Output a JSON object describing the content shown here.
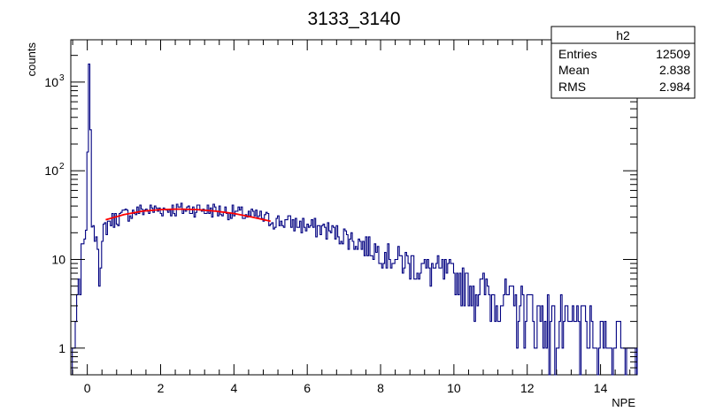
{
  "chart_data": {
    "type": "histogram",
    "title": "3133_3140",
    "xlabel": "NPE",
    "ylabel": "counts",
    "xlim": [
      -0.45,
      15
    ],
    "ylim": [
      0.5,
      3000
    ],
    "yscale": "log",
    "grid": false,
    "x_ticks": [
      0,
      2,
      4,
      6,
      8,
      10,
      12,
      14
    ],
    "y_ticks": [
      {
        "value": 1,
        "label": "1"
      },
      {
        "value": 10,
        "label": "10"
      },
      {
        "value": 100,
        "label": "10",
        "exp": "2"
      },
      {
        "value": 1000,
        "label": "10",
        "exp": "3"
      }
    ],
    "hist_color": "#000080",
    "fit_color": "#ff0000",
    "histogram_shape": [
      [
        -0.45,
        0.0
      ],
      [
        -0.1,
        20
      ],
      [
        0.0,
        22
      ],
      [
        0.02,
        1200
      ],
      [
        0.05,
        1600
      ],
      [
        0.08,
        900
      ],
      [
        0.11,
        30
      ],
      [
        0.15,
        18
      ],
      [
        0.2,
        21
      ],
      [
        0.3,
        17
      ],
      [
        0.35,
        5
      ],
      [
        0.45,
        22
      ],
      [
        0.6,
        27
      ],
      [
        1.0,
        32
      ],
      [
        1.5,
        36
      ],
      [
        2.0,
        37
      ],
      [
        2.5,
        37
      ],
      [
        3.0,
        37
      ],
      [
        3.5,
        36
      ],
      [
        4.0,
        34
      ],
      [
        4.5,
        31
      ],
      [
        5.0,
        28
      ],
      [
        5.5,
        26
      ],
      [
        6.0,
        24
      ],
      [
        6.5,
        22
      ],
      [
        7.0,
        19
      ],
      [
        7.5,
        15
      ],
      [
        8.0,
        12.5
      ],
      [
        8.5,
        10
      ],
      [
        9.0,
        8.5
      ],
      [
        9.5,
        7.5
      ],
      [
        10.0,
        6.5
      ],
      [
        10.5,
        5
      ],
      [
        11.0,
        4.2
      ],
      [
        11.5,
        3.3
      ],
      [
        12.0,
        2.8
      ],
      [
        12.5,
        2.3
      ],
      [
        13.0,
        1.9
      ],
      [
        13.5,
        1.6
      ],
      [
        14.0,
        1.3
      ],
      [
        14.5,
        1.1
      ],
      [
        15.0,
        1.0
      ]
    ],
    "fit": {
      "x_range": [
        0.5,
        5.0
      ],
      "points": [
        [
          0.5,
          28
        ],
        [
          1.0,
          32
        ],
        [
          1.5,
          35
        ],
        [
          2.0,
          36.5
        ],
        [
          2.5,
          37
        ],
        [
          3.0,
          36.5
        ],
        [
          3.5,
          35
        ],
        [
          4.0,
          33
        ],
        [
          4.5,
          30
        ],
        [
          5.0,
          27
        ]
      ]
    },
    "stats": {
      "name": "h2",
      "rows": [
        {
          "label": "Entries",
          "value": "12509"
        },
        {
          "label": "Mean",
          "value": "2.838"
        },
        {
          "label": "RMS",
          "value": "2.984"
        }
      ]
    }
  }
}
